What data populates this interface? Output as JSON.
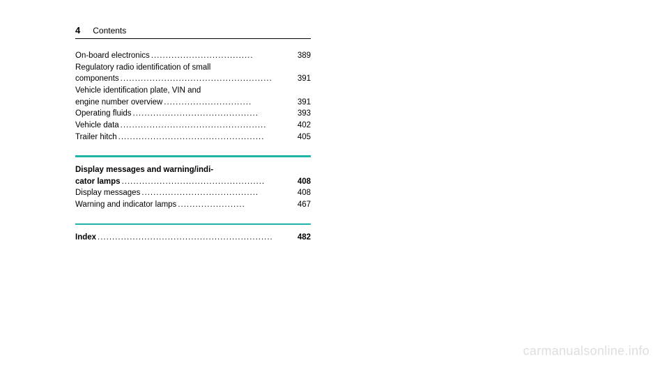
{
  "header": {
    "page_number": "4",
    "title": "Contents"
  },
  "sections": [
    {
      "entries": [
        {
          "label": "On-board electronics",
          "page": "389",
          "dots": "..................................."
        },
        {
          "label_line1": "Regulatory radio identification of small",
          "label_line2": "components",
          "page": "391",
          "dots": "...................................................."
        },
        {
          "label_line1": "Vehicle identification plate, VIN and",
          "label_line2": "engine number overview",
          "page": "391",
          "dots": ".............................."
        },
        {
          "label": "Operating fluids",
          "page": "393",
          "dots": "..........................................."
        },
        {
          "label": "Vehicle data",
          "page": "402",
          "dots": ".................................................."
        },
        {
          "label": "Trailer hitch",
          "page": "405",
          "dots": ".................................................."
        }
      ]
    },
    {
      "heading": {
        "label_line1": "Display messages and warning/indi-",
        "label_line2": "cator lamps",
        "page": "408",
        "dots": ".................................................",
        "bold": true
      },
      "entries": [
        {
          "label": "Display messages",
          "page": "408",
          "dots": "........................................"
        },
        {
          "label": "Warning and indicator lamps",
          "page": "467",
          "dots": "......................."
        }
      ]
    },
    {
      "entries": [
        {
          "label": "Index",
          "page": "482",
          "dots": "............................................................",
          "bold": true
        }
      ]
    }
  ],
  "watermark": "carmanualsonline.info"
}
